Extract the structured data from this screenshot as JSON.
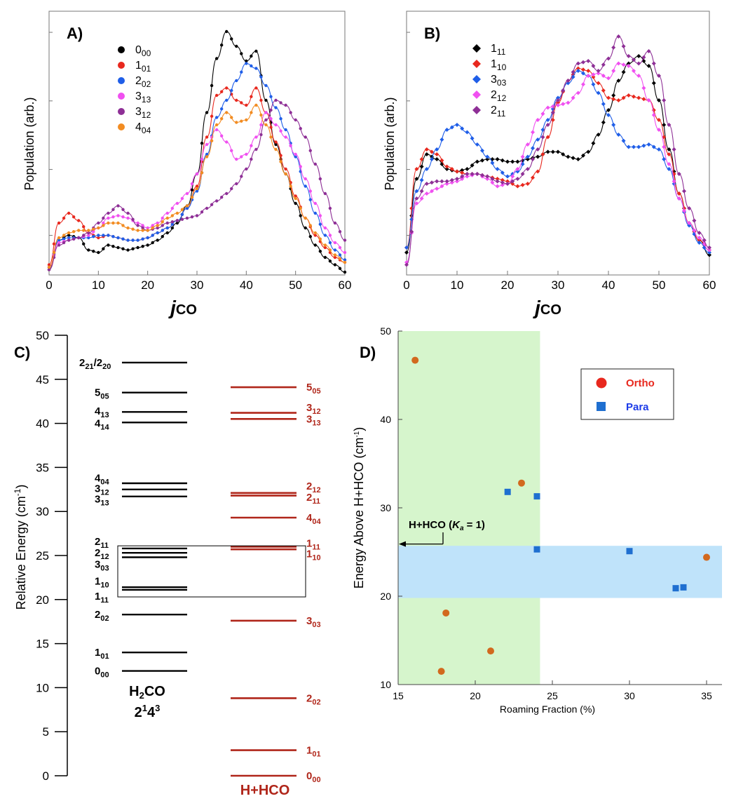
{
  "panels": {
    "A": {
      "letter": "A)",
      "ylabel": "Population (arb.)",
      "xlabel_j": "j",
      "xlabel_sub": "CO",
      "x_ticks": [
        "0",
        "10",
        "20",
        "30",
        "40",
        "50",
        "60"
      ],
      "xlim": [
        0,
        60
      ],
      "legend": [
        {
          "base": "0",
          "sub": "00",
          "color": "#000000"
        },
        {
          "base": "1",
          "sub": "01",
          "color": "#e8281e"
        },
        {
          "base": "2",
          "sub": "02",
          "color": "#1f5ee8"
        },
        {
          "base": "3",
          "sub": "13",
          "color": "#f050f0"
        },
        {
          "base": "3",
          "sub": "12",
          "color": "#8e2f96"
        },
        {
          "base": "4",
          "sub": "04",
          "color": "#f28c22"
        }
      ]
    },
    "B": {
      "letter": "B)",
      "ylabel": "Population (arb.)",
      "xlabel_j": "j",
      "xlabel_sub": "CO",
      "x_ticks": [
        "0",
        "10",
        "20",
        "30",
        "40",
        "50",
        "60"
      ],
      "xlim": [
        0,
        60
      ],
      "legend": [
        {
          "base": "1",
          "sub": "11",
          "color": "#000000"
        },
        {
          "base": "1",
          "sub": "10",
          "color": "#e8281e"
        },
        {
          "base": "3",
          "sub": "03",
          "color": "#1f5ee8"
        },
        {
          "base": "2",
          "sub": "12",
          "color": "#f050f0"
        },
        {
          "base": "2",
          "sub": "11",
          "color": "#8e2f96"
        }
      ]
    },
    "C": {
      "letter": "C)",
      "ylabel": "Relative Energy (cm",
      "ylabel_sup": "-1",
      "ylabel_end": ")",
      "y_ticks": [
        "0",
        "5",
        "10",
        "15",
        "20",
        "25",
        "30",
        "35",
        "40",
        "45",
        "50"
      ],
      "h2co_title": "H",
      "h2co_title_sub": "2",
      "h2co_title_end": "CO",
      "h2co_mode": "2",
      "h2co_mode_sup1": "1",
      "h2co_mode_mid": "4",
      "h2co_mode_sup2": "3",
      "hhco_title": "H+HCO"
    },
    "D": {
      "letter": "D)",
      "ylabel": "Energy Above H+HCO (cm",
      "ylabel_sup": "-1",
      "ylabel_end": ")",
      "xlabel": "Roaming Fraction (%)",
      "x_ticks": [
        "15",
        "20",
        "25",
        "30",
        "35"
      ],
      "y_ticks": [
        "10",
        "20",
        "30",
        "40",
        "50"
      ],
      "annotation": "H+HCO (",
      "annotation_k": "K",
      "annotation_ksub": "a",
      "annotation_end": " = 1)",
      "legend_ortho": "Ortho",
      "legend_para": "Para",
      "ortho_color": "#d2691e",
      "para_color": "#1f6fd0"
    }
  },
  "chart_data": [
    {
      "panel": "A",
      "type": "line",
      "xlabel": "jCO",
      "ylabel": "Population (arb.)",
      "xlim": [
        0,
        60
      ],
      "ylim": [
        0,
        1
      ],
      "x": [
        0,
        2,
        4,
        6,
        8,
        10,
        12,
        14,
        16,
        18,
        20,
        22,
        24,
        26,
        28,
        30,
        32,
        34,
        36,
        38,
        40,
        42,
        44,
        46,
        48,
        50,
        52,
        54,
        56,
        58,
        60
      ],
      "series": [
        {
          "name": "0_00",
          "color": "#000000",
          "values": [
            0.01,
            0.13,
            0.15,
            0.14,
            0.09,
            0.08,
            0.11,
            0.1,
            0.09,
            0.1,
            0.11,
            0.13,
            0.16,
            0.2,
            0.27,
            0.4,
            0.65,
            0.87,
            0.98,
            0.92,
            0.86,
            0.9,
            0.7,
            0.52,
            0.4,
            0.28,
            0.18,
            0.11,
            0.06,
            0.03,
            0.0
          ]
        },
        {
          "name": "1_01",
          "color": "#e8281e",
          "values": [
            0.03,
            0.2,
            0.24,
            0.21,
            0.16,
            0.14,
            0.15,
            0.14,
            0.13,
            0.13,
            0.14,
            0.16,
            0.18,
            0.21,
            0.26,
            0.35,
            0.55,
            0.72,
            0.75,
            0.7,
            0.68,
            0.75,
            0.65,
            0.53,
            0.42,
            0.31,
            0.22,
            0.15,
            0.1,
            0.06,
            0.04
          ]
        },
        {
          "name": "2_02",
          "color": "#1f5ee8",
          "values": [
            0.02,
            0.13,
            0.14,
            0.14,
            0.14,
            0.15,
            0.15,
            0.14,
            0.13,
            0.13,
            0.14,
            0.16,
            0.18,
            0.21,
            0.26,
            0.33,
            0.48,
            0.63,
            0.7,
            0.78,
            0.85,
            0.83,
            0.76,
            0.67,
            0.58,
            0.47,
            0.35,
            0.24,
            0.15,
            0.09,
            0.05
          ]
        },
        {
          "name": "3_13",
          "color": "#f050f0",
          "values": [
            0.02,
            0.12,
            0.13,
            0.14,
            0.15,
            0.18,
            0.22,
            0.23,
            0.22,
            0.2,
            0.18,
            0.2,
            0.24,
            0.28,
            0.32,
            0.4,
            0.52,
            0.58,
            0.53,
            0.46,
            0.48,
            0.55,
            0.65,
            0.6,
            0.55,
            0.48,
            0.38,
            0.28,
            0.18,
            0.12,
            0.08
          ]
        },
        {
          "name": "3_12",
          "color": "#8e2f96",
          "values": [
            0.01,
            0.11,
            0.13,
            0.14,
            0.16,
            0.2,
            0.24,
            0.27,
            0.24,
            0.19,
            0.17,
            0.18,
            0.2,
            0.21,
            0.22,
            0.23,
            0.26,
            0.29,
            0.32,
            0.36,
            0.42,
            0.5,
            0.62,
            0.7,
            0.68,
            0.62,
            0.55,
            0.44,
            0.32,
            0.2,
            0.13
          ]
        },
        {
          "name": "4_04",
          "color": "#f28c22",
          "values": [
            0.02,
            0.14,
            0.16,
            0.17,
            0.17,
            0.18,
            0.2,
            0.2,
            0.18,
            0.17,
            0.17,
            0.19,
            0.22,
            0.24,
            0.27,
            0.34,
            0.47,
            0.6,
            0.65,
            0.61,
            0.62,
            0.68,
            0.6,
            0.5,
            0.4,
            0.3,
            0.22,
            0.16,
            0.11,
            0.07,
            0.04
          ]
        }
      ]
    },
    {
      "panel": "B",
      "type": "line",
      "xlabel": "jCO",
      "ylabel": "Population (arb.)",
      "xlim": [
        0,
        60
      ],
      "ylim": [
        0,
        1
      ],
      "x": [
        0,
        2,
        4,
        6,
        8,
        10,
        12,
        14,
        16,
        18,
        20,
        22,
        24,
        26,
        28,
        30,
        32,
        34,
        36,
        38,
        40,
        42,
        44,
        46,
        48,
        50,
        52,
        54,
        56,
        58,
        60
      ],
      "series": [
        {
          "name": "1_11",
          "color": "#000000",
          "values": [
            0.08,
            0.38,
            0.48,
            0.46,
            0.42,
            0.41,
            0.42,
            0.45,
            0.46,
            0.46,
            0.45,
            0.45,
            0.46,
            0.47,
            0.49,
            0.49,
            0.47,
            0.46,
            0.49,
            0.56,
            0.66,
            0.78,
            0.85,
            0.88,
            0.84,
            0.7,
            0.5,
            0.32,
            0.2,
            0.13,
            0.07
          ]
        },
        {
          "name": "1_10",
          "color": "#e8281e",
          "values": [
            0.1,
            0.42,
            0.5,
            0.48,
            0.43,
            0.41,
            0.4,
            0.4,
            0.39,
            0.38,
            0.37,
            0.35,
            0.36,
            0.41,
            0.55,
            0.69,
            0.78,
            0.83,
            0.82,
            0.77,
            0.71,
            0.7,
            0.72,
            0.71,
            0.7,
            0.62,
            0.48,
            0.32,
            0.2,
            0.13,
            0.09
          ]
        },
        {
          "name": "3_03",
          "color": "#1f5ee8",
          "values": [
            0.1,
            0.33,
            0.42,
            0.5,
            0.58,
            0.6,
            0.57,
            0.52,
            0.47,
            0.42,
            0.39,
            0.41,
            0.47,
            0.54,
            0.62,
            0.71,
            0.77,
            0.82,
            0.8,
            0.73,
            0.64,
            0.56,
            0.51,
            0.51,
            0.52,
            0.5,
            0.42,
            0.3,
            0.19,
            0.12,
            0.08
          ]
        },
        {
          "name": "2_12",
          "color": "#f050f0",
          "values": [
            0.04,
            0.28,
            0.32,
            0.34,
            0.36,
            0.37,
            0.39,
            0.4,
            0.38,
            0.35,
            0.36,
            0.42,
            0.52,
            0.62,
            0.67,
            0.68,
            0.69,
            0.73,
            0.8,
            0.81,
            0.79,
            0.85,
            0.84,
            0.8,
            0.7,
            0.58,
            0.44,
            0.3,
            0.2,
            0.14,
            0.09
          ]
        },
        {
          "name": "2_11",
          "color": "#8e2f96",
          "values": [
            0.03,
            0.3,
            0.36,
            0.37,
            0.37,
            0.38,
            0.4,
            0.4,
            0.39,
            0.37,
            0.36,
            0.38,
            0.42,
            0.5,
            0.6,
            0.7,
            0.78,
            0.85,
            0.86,
            0.82,
            0.87,
            0.96,
            0.88,
            0.85,
            0.9,
            0.8,
            0.6,
            0.4,
            0.26,
            0.16,
            0.1
          ]
        }
      ]
    },
    {
      "panel": "C",
      "type": "table",
      "ylabel": "Relative Energy (cm-1)",
      "ylim": [
        0,
        50
      ],
      "h2co_levels": [
        {
          "label": "0",
          "sub": "00",
          "energy": 11.9
        },
        {
          "label": "1",
          "sub": "01",
          "energy": 14.0
        },
        {
          "label": "2",
          "sub": "02",
          "energy": 18.3
        },
        {
          "label": "1",
          "sub": "11",
          "energy": 21.1
        },
        {
          "label": "1",
          "sub": "10",
          "energy": 21.4
        },
        {
          "label": "3",
          "sub": "03",
          "energy": 24.8
        },
        {
          "label": "2",
          "sub": "12",
          "energy": 25.3
        },
        {
          "label": "2",
          "sub": "11",
          "energy": 25.8
        },
        {
          "label": "3",
          "sub": "13",
          "energy": 31.7
        },
        {
          "label": "3",
          "sub": "12",
          "energy": 32.5
        },
        {
          "label": "4",
          "sub": "04",
          "energy": 33.2
        },
        {
          "label": "4",
          "sub": "14",
          "energy": 40.1
        },
        {
          "label": "4",
          "sub": "13",
          "energy": 41.3
        },
        {
          "label": "5",
          "sub": "05",
          "energy": 43.5
        },
        {
          "label": "2",
          "sub": "21",
          "label2": "/2",
          "sub2": "20",
          "energy": 46.9
        }
      ],
      "hhco_levels": [
        {
          "label": "0",
          "sub": "00",
          "energy": 0.0
        },
        {
          "label": "1",
          "sub": "01",
          "energy": 2.9
        },
        {
          "label": "2",
          "sub": "02",
          "energy": 8.8
        },
        {
          "label": "3",
          "sub": "03",
          "energy": 17.6
        },
        {
          "label": "1",
          "sub": "10",
          "energy": 25.7
        },
        {
          "label": "1",
          "sub": "11",
          "energy": 26.0
        },
        {
          "label": "4",
          "sub": "04",
          "energy": 29.3
        },
        {
          "label": "2",
          "sub": "11",
          "energy": 31.8
        },
        {
          "label": "2",
          "sub": "12",
          "energy": 32.1
        },
        {
          "label": "3",
          "sub": "13",
          "energy": 40.5
        },
        {
          "label": "3",
          "sub": "12",
          "energy": 41.2
        },
        {
          "label": "5",
          "sub": "05",
          "energy": 44.1
        }
      ],
      "box_range": [
        20.3,
        26.1
      ]
    },
    {
      "panel": "D",
      "type": "scatter",
      "xlabel": "Roaming Fraction (%)",
      "ylabel": "Energy Above H+HCO (cm-1)",
      "xlim": [
        15,
        36
      ],
      "ylim": [
        10,
        50
      ],
      "green_band_x": [
        15,
        24.2
      ],
      "blue_band_y": [
        19.8,
        25.7
      ],
      "arrow_y": 25.9,
      "series": [
        {
          "name": "Ortho",
          "marker": "circle",
          "color": "#d2691e",
          "points": [
            [
              16.1,
              46.7
            ],
            [
              17.8,
              11.5
            ],
            [
              18.1,
              18.1
            ],
            [
              21.0,
              13.8
            ],
            [
              23.0,
              32.8
            ],
            [
              35.0,
              24.4
            ]
          ]
        },
        {
          "name": "Para",
          "marker": "square",
          "color": "#1f6fd0",
          "points": [
            [
              22.1,
              31.8
            ],
            [
              24.0,
              31.3
            ],
            [
              24.0,
              25.3
            ],
            [
              30.0,
              25.1
            ],
            [
              33.0,
              20.9
            ],
            [
              33.5,
              21.0
            ]
          ]
        }
      ]
    }
  ]
}
